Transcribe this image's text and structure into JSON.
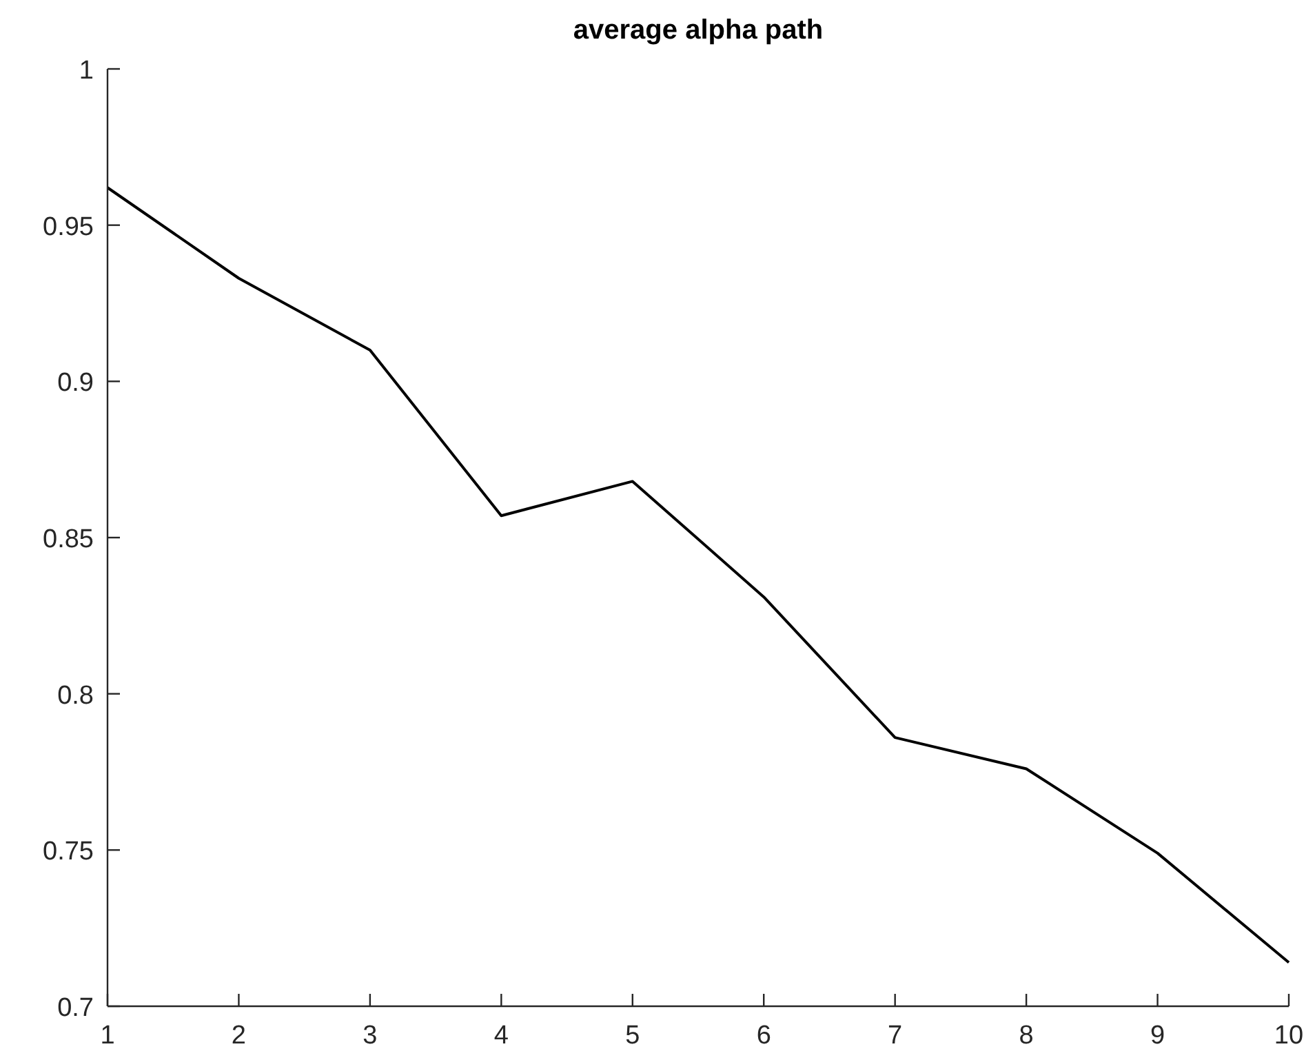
{
  "chart_data": {
    "type": "line",
    "title": "average alpha path",
    "x": [
      1,
      2,
      3,
      4,
      5,
      6,
      7,
      8,
      9,
      10
    ],
    "series": [
      {
        "color": "#000000",
        "values": [
          0.962,
          0.933,
          0.91,
          0.857,
          0.868,
          0.831,
          0.786,
          0.776,
          0.749,
          0.714
        ]
      }
    ],
    "xlim": [
      1,
      10
    ],
    "xticks": [
      1,
      2,
      3,
      4,
      5,
      6,
      7,
      8,
      9,
      10
    ],
    "ylim": [
      0.7,
      1
    ],
    "yticks": [
      0.7,
      0.75,
      0.8,
      0.85,
      0.9,
      0.95,
      1
    ],
    "grid": false,
    "marker": "none",
    "line_style": "solid"
  }
}
